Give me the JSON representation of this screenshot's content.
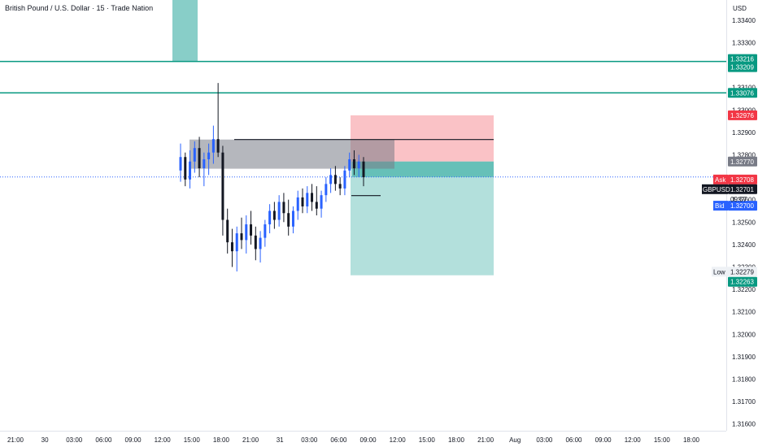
{
  "header": {
    "title": "British Pound / U.S. Dollar · 15 · Trade Nation",
    "currency": "USD"
  },
  "colors": {
    "up": "#2962ff",
    "down": "#131722",
    "teal": "#089981",
    "teal_fill": "#26a69a",
    "red": "#f23645",
    "red_fill": "#f7a1a7",
    "grey_fill": "#787b86",
    "ask": "#f23645",
    "bid": "#2962ff",
    "current": "#131722"
  },
  "price_scale": {
    "ticks": [
      "1.33400",
      "1.33300",
      "1.33100",
      "1.33000",
      "1.32900",
      "1.32800",
      "1.32600",
      "1.32500",
      "1.32400",
      "1.32300",
      "1.32200",
      "1.32100",
      "1.32000",
      "1.31900",
      "1.31800",
      "1.31700",
      "1.31600"
    ]
  },
  "badges": {
    "level1": "1.33216",
    "level2": "1.33209",
    "level3": "1.33076",
    "stop": "1.32976",
    "entry": "1.32770",
    "ask_label": "Ask",
    "ask": "1.32708",
    "symbol": "GBPUSD",
    "current": "1.32701",
    "countdown": "09:57",
    "bid_label": "Bid",
    "bid": "1.32700",
    "low_label": "Low",
    "low": "1.32279",
    "target": "1.32263"
  },
  "time_axis": {
    "labels": [
      "21:00",
      "30",
      "03:00",
      "06:00",
      "09:00",
      "12:00",
      "15:00",
      "18:00",
      "21:00",
      "31",
      "03:00",
      "06:00",
      "09:00",
      "12:00",
      "15:00",
      "18:00",
      "21:00",
      "Aug",
      "03:00",
      "06:00",
      "09:00",
      "12:00",
      "15:00",
      "18:00"
    ]
  },
  "chart_data": {
    "type": "candlestick",
    "symbol": "GBPUSD",
    "interval": "15",
    "y_range": [
      1.3157,
      1.3349
    ],
    "horizontal_levels": [
      1.33216,
      1.33209,
      1.33076
    ],
    "zones": {
      "stop_zone": [
        1.32976,
        1.3277
      ],
      "target_zone": [
        1.3277,
        1.32263
      ],
      "supply_zone": [
        1.32868,
        1.32738
      ]
    },
    "stop": 1.32976,
    "entry": 1.3277,
    "target": 1.32263,
    "ask": 1.32708,
    "bid": 1.327,
    "last": 1.32701,
    "low": 1.32279,
    "candles": [
      {
        "o": 1.3273,
        "h": 1.3285,
        "l": 1.3268,
        "c": 1.3279
      },
      {
        "o": 1.3279,
        "h": 1.3281,
        "l": 1.3266,
        "c": 1.3269
      },
      {
        "o": 1.3269,
        "h": 1.3282,
        "l": 1.3265,
        "c": 1.3277
      },
      {
        "o": 1.3277,
        "h": 1.3286,
        "l": 1.3272,
        "c": 1.3283
      },
      {
        "o": 1.3283,
        "h": 1.3288,
        "l": 1.327,
        "c": 1.3274
      },
      {
        "o": 1.3274,
        "h": 1.3281,
        "l": 1.3266,
        "c": 1.3278
      },
      {
        "o": 1.3278,
        "h": 1.3285,
        "l": 1.3271,
        "c": 1.3281
      },
      {
        "o": 1.3281,
        "h": 1.3293,
        "l": 1.3276,
        "c": 1.3287
      },
      {
        "o": 1.3287,
        "h": 1.3312,
        "l": 1.3279,
        "c": 1.3281
      },
      {
        "o": 1.3281,
        "h": 1.3284,
        "l": 1.3244,
        "c": 1.3251
      },
      {
        "o": 1.3251,
        "h": 1.3256,
        "l": 1.3236,
        "c": 1.3241
      },
      {
        "o": 1.3241,
        "h": 1.3247,
        "l": 1.323,
        "c": 1.3237
      },
      {
        "o": 1.3237,
        "h": 1.3248,
        "l": 1.3228,
        "c": 1.3245
      },
      {
        "o": 1.3245,
        "h": 1.3252,
        "l": 1.3238,
        "c": 1.3242
      },
      {
        "o": 1.3242,
        "h": 1.3253,
        "l": 1.3236,
        "c": 1.3249
      },
      {
        "o": 1.3249,
        "h": 1.3255,
        "l": 1.324,
        "c": 1.3244
      },
      {
        "o": 1.3244,
        "h": 1.3248,
        "l": 1.3233,
        "c": 1.3238
      },
      {
        "o": 1.3238,
        "h": 1.3246,
        "l": 1.3232,
        "c": 1.3243
      },
      {
        "o": 1.3243,
        "h": 1.3251,
        "l": 1.3239,
        "c": 1.3249
      },
      {
        "o": 1.3249,
        "h": 1.3258,
        "l": 1.3245,
        "c": 1.3255
      },
      {
        "o": 1.3255,
        "h": 1.3259,
        "l": 1.3247,
        "c": 1.3251
      },
      {
        "o": 1.3251,
        "h": 1.3262,
        "l": 1.3248,
        "c": 1.3259
      },
      {
        "o": 1.3259,
        "h": 1.3263,
        "l": 1.325,
        "c": 1.3254
      },
      {
        "o": 1.3254,
        "h": 1.326,
        "l": 1.3244,
        "c": 1.3248
      },
      {
        "o": 1.3248,
        "h": 1.3257,
        "l": 1.3245,
        "c": 1.3255
      },
      {
        "o": 1.3255,
        "h": 1.3264,
        "l": 1.3251,
        "c": 1.3261
      },
      {
        "o": 1.3261,
        "h": 1.3265,
        "l": 1.3254,
        "c": 1.3257
      },
      {
        "o": 1.3257,
        "h": 1.3266,
        "l": 1.3254,
        "c": 1.3263
      },
      {
        "o": 1.3263,
        "h": 1.3267,
        "l": 1.3255,
        "c": 1.3259
      },
      {
        "o": 1.3259,
        "h": 1.3266,
        "l": 1.3253,
        "c": 1.3256
      },
      {
        "o": 1.3256,
        "h": 1.3264,
        "l": 1.3252,
        "c": 1.3262
      },
      {
        "o": 1.3262,
        "h": 1.327,
        "l": 1.3259,
        "c": 1.3267
      },
      {
        "o": 1.3267,
        "h": 1.3274,
        "l": 1.3263,
        "c": 1.3271
      },
      {
        "o": 1.3271,
        "h": 1.3275,
        "l": 1.3264,
        "c": 1.3267
      },
      {
        "o": 1.3267,
        "h": 1.327,
        "l": 1.3262,
        "c": 1.3265
      },
      {
        "o": 1.3265,
        "h": 1.3275,
        "l": 1.3262,
        "c": 1.3273
      },
      {
        "o": 1.3273,
        "h": 1.3281,
        "l": 1.327,
        "c": 1.3278
      },
      {
        "o": 1.3278,
        "h": 1.3282,
        "l": 1.3271,
        "c": 1.3274
      },
      {
        "o": 1.3274,
        "h": 1.328,
        "l": 1.327,
        "c": 1.3277
      },
      {
        "o": 1.3277,
        "h": 1.3279,
        "l": 1.3266,
        "c": 1.327
      }
    ]
  }
}
